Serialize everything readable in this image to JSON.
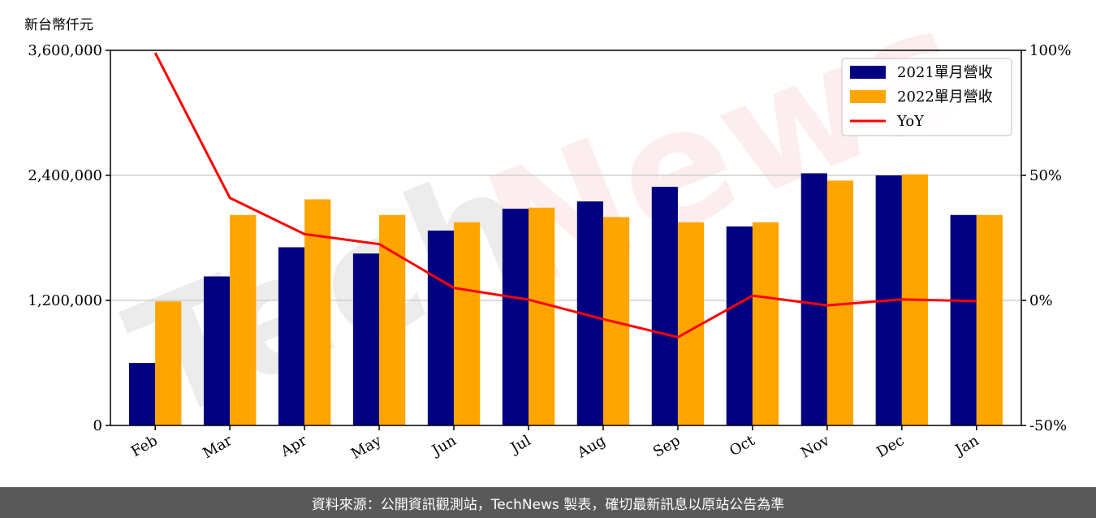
{
  "unit_label": "新台幣仟元",
  "footer_text": "資料來源：公開資訊觀測站，TechNews 製表，確切最新訊息以原站公告為準",
  "watermark": {
    "part1": "Tech",
    "part2": "News"
  },
  "colors": {
    "series2021": "#000080",
    "series2022": "#FFA500",
    "yoy": "#FF0000"
  },
  "chart_data": {
    "type": "bar",
    "categories": [
      "Feb",
      "Mar",
      "Apr",
      "May",
      "Jun",
      "Jul",
      "Aug",
      "Sep",
      "Oct",
      "Nov",
      "Dec",
      "Jan"
    ],
    "series": [
      {
        "name": "2021單月營收",
        "values": [
          600000,
          1430000,
          1710000,
          1650000,
          1870000,
          2080000,
          2150000,
          2290000,
          1910000,
          2420000,
          2400000,
          2020000
        ]
      },
      {
        "name": "2022單月營收",
        "values": [
          1190000,
          2020000,
          2170000,
          2020000,
          1950000,
          2090000,
          2000000,
          1950000,
          1950000,
          2350000,
          2410000,
          2020000
        ]
      }
    ],
    "yoy": {
      "name": "YoY",
      "values": [
        99,
        41,
        26.5,
        22.5,
        5,
        0.3,
        -7.5,
        -14.7,
        1.9,
        -2,
        0.4,
        -0.3
      ]
    },
    "y_left": {
      "min": 0,
      "max": 3600000,
      "ticks": [
        0,
        1200000,
        2400000,
        3600000
      ],
      "tick_labels": [
        "0",
        "1,200,000",
        "2,400,000",
        "3,600,000"
      ]
    },
    "y_right": {
      "min": -50,
      "max": 100,
      "ticks": [
        -50,
        0,
        50,
        100
      ],
      "tick_labels": [
        "-50%",
        "0%",
        "50%",
        "100%"
      ]
    },
    "grid": "horizontal",
    "legend_position": "top-right"
  }
}
